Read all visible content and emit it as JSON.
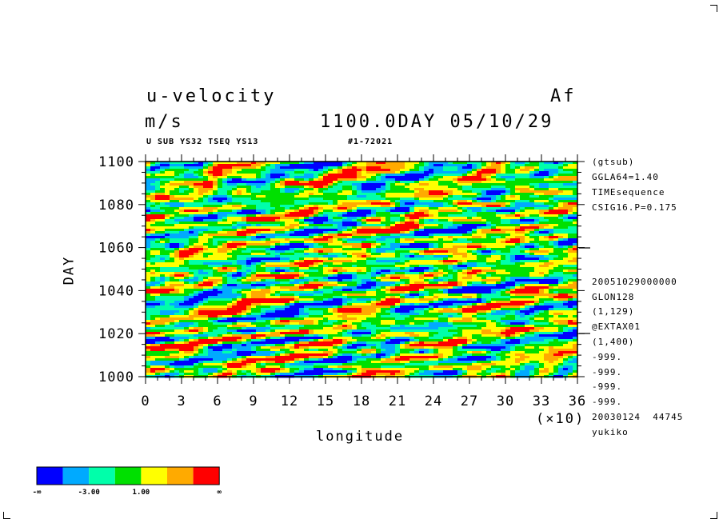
{
  "header": {
    "title": "u-velocity",
    "units": "m/s",
    "right_label": "Af",
    "time_label": "1100.0DAY 05/10/29",
    "subtitle_left": "U SUB YS32 TSEQ YS13",
    "subtitle_right": "#1-72021"
  },
  "side_info": {
    "top": [
      "(gtsub)",
      "GGLA64=1.40",
      "TIMEsequence",
      "CSIG16.P=0.175"
    ],
    "bottom": [
      "20051029000000",
      "GLON128",
      "(1,129)",
      "@EXTAX01",
      "(1,400)",
      "-999.",
      "-999.",
      "-999.",
      "-999.",
      "20030124  44745",
      "yukiko"
    ]
  },
  "chart_data": {
    "type": "heatmap",
    "xlabel": "longitude",
    "ylabel": "DAY",
    "x_multiplier_label": "(×10)",
    "xlim": [
      0,
      36
    ],
    "ylim": [
      1000,
      1100
    ],
    "x_ticks": [
      "0",
      "3",
      "6",
      "9",
      "12",
      "15",
      "18",
      "21",
      "24",
      "27",
      "30",
      "33",
      "36"
    ],
    "y_ticks": [
      "1000",
      "1020",
      "1040",
      "1060",
      "1080",
      "1100"
    ],
    "color_levels": [
      "#0000ff",
      "#00aaff",
      "#00ffaa",
      "#00e000",
      "#ffff00",
      "#ffaa00",
      "#ff0000"
    ],
    "legend_labels": [
      "-∞",
      "-3.00",
      "1.00",
      "∞"
    ]
  }
}
